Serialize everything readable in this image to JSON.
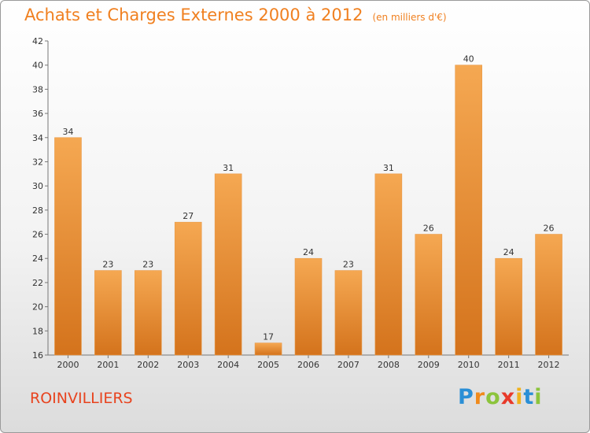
{
  "header": {
    "title": "Achats et Charges Externes 2000 à 2012",
    "unit": "(en milliers d'€)"
  },
  "footer": {
    "commune": "ROINVILLIERS",
    "logo": {
      "letters": [
        "P",
        "r",
        "o",
        "x",
        "i",
        "t",
        "i"
      ],
      "colors": [
        "#2a8fd6",
        "#f08a1c",
        "#8cc43c",
        "#e83a2a",
        "#f0b21c",
        "#2a8fd6",
        "#8cc43c"
      ]
    }
  },
  "colors": {
    "bar_light": "#f5a852",
    "bar_dark": "#d4731c",
    "title": "#f08020",
    "commune": "#e8431e"
  },
  "chart_data": {
    "type": "bar",
    "categories": [
      "2000",
      "2001",
      "2002",
      "2003",
      "2004",
      "2005",
      "2006",
      "2007",
      "2008",
      "2009",
      "2010",
      "2011",
      "2012"
    ],
    "values": [
      34,
      23,
      23,
      27,
      31,
      17,
      24,
      23,
      31,
      26,
      40,
      24,
      26
    ],
    "ylim": [
      16,
      42
    ],
    "yticks": [
      16,
      18,
      20,
      22,
      24,
      26,
      28,
      30,
      32,
      34,
      36,
      38,
      40,
      42
    ],
    "grid": false,
    "legend": "none"
  }
}
